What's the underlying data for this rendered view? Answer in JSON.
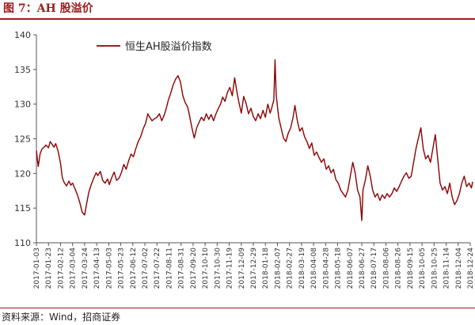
{
  "figure_title": "图 7：AH 股溢价",
  "source": "资料来源：Wind，招商证券",
  "colors": {
    "accent": "#9b1b1b",
    "series": "#8b0000"
  },
  "chart_data": {
    "type": "line",
    "title": "",
    "xlabel": "",
    "ylabel": "",
    "ylim": [
      110,
      140
    ],
    "yticks": [
      110,
      115,
      120,
      125,
      130,
      135,
      140
    ],
    "grid": false,
    "legend": "top-left",
    "xticks": [
      "2017-01-03",
      "2017-01-23",
      "2017-02-12",
      "2017-03-04",
      "2017-03-24",
      "2017-04-13",
      "2017-05-03",
      "2017-05-23",
      "2017-06-12",
      "2017-07-02",
      "2017-07-22",
      "2017-08-11",
      "2017-08-31",
      "2017-09-20",
      "2017-10-10",
      "2017-10-30",
      "2017-11-19",
      "2017-12-09",
      "2017-12-29",
      "2018-01-18",
      "2018-02-07",
      "2018-02-27",
      "2018-03-19",
      "2018-04-08",
      "2018-04-28",
      "2018-05-18",
      "2018-06-07",
      "2018-06-27",
      "2018-07-17",
      "2018-08-06",
      "2018-08-26",
      "2018-09-15",
      "2018-10-05",
      "2018-10-25",
      "2018-11-14",
      "2018-12-04",
      "2018-12-24"
    ],
    "series": [
      {
        "name": "恒生AH股溢价指数",
        "points": [
          [
            "2017-01-03",
            123.3
          ],
          [
            "2017-01-06",
            121.0
          ],
          [
            "2017-01-09",
            122.8
          ],
          [
            "2017-01-12",
            123.5
          ],
          [
            "2017-01-16",
            123.8
          ],
          [
            "2017-01-19",
            124.1
          ],
          [
            "2017-01-23",
            123.7
          ],
          [
            "2017-01-26",
            124.6
          ],
          [
            "2017-02-01",
            123.8
          ],
          [
            "2017-02-04",
            124.3
          ],
          [
            "2017-02-08",
            123.2
          ],
          [
            "2017-02-12",
            121.5
          ],
          [
            "2017-02-15",
            119.4
          ],
          [
            "2017-02-18",
            118.7
          ],
          [
            "2017-02-22",
            118.2
          ],
          [
            "2017-02-26",
            118.9
          ],
          [
            "2017-03-01",
            118.3
          ],
          [
            "2017-03-04",
            118.6
          ],
          [
            "2017-03-08",
            117.8
          ],
          [
            "2017-03-12",
            116.9
          ],
          [
            "2017-03-16",
            115.8
          ],
          [
            "2017-03-20",
            114.4
          ],
          [
            "2017-03-24",
            114.0
          ],
          [
            "2017-03-27",
            115.5
          ],
          [
            "2017-03-31",
            117.3
          ],
          [
            "2017-04-04",
            118.4
          ],
          [
            "2017-04-08",
            119.3
          ],
          [
            "2017-04-12",
            120.1
          ],
          [
            "2017-04-15",
            119.7
          ],
          [
            "2017-04-19",
            120.3
          ],
          [
            "2017-04-23",
            119.0
          ],
          [
            "2017-04-27",
            118.6
          ],
          [
            "2017-05-01",
            119.2
          ],
          [
            "2017-05-04",
            118.4
          ],
          [
            "2017-05-08",
            119.4
          ],
          [
            "2017-05-12",
            120.2
          ],
          [
            "2017-05-16",
            119.0
          ],
          [
            "2017-05-20",
            119.3
          ],
          [
            "2017-05-24",
            120.1
          ],
          [
            "2017-05-28",
            121.3
          ],
          [
            "2017-06-01",
            120.6
          ],
          [
            "2017-06-05",
            121.8
          ],
          [
            "2017-06-09",
            122.8
          ],
          [
            "2017-06-13",
            122.4
          ],
          [
            "2017-06-17",
            123.6
          ],
          [
            "2017-06-21",
            124.6
          ],
          [
            "2017-06-25",
            125.3
          ],
          [
            "2017-06-29",
            126.4
          ],
          [
            "2017-07-03",
            127.2
          ],
          [
            "2017-07-07",
            128.6
          ],
          [
            "2017-07-10",
            128.1
          ],
          [
            "2017-07-14",
            127.6
          ],
          [
            "2017-07-18",
            127.9
          ],
          [
            "2017-07-22",
            128.1
          ],
          [
            "2017-07-26",
            128.6
          ],
          [
            "2017-07-30",
            127.6
          ],
          [
            "2017-08-03",
            128.4
          ],
          [
            "2017-08-06",
            129.2
          ],
          [
            "2017-08-10",
            130.6
          ],
          [
            "2017-08-14",
            131.6
          ],
          [
            "2017-08-18",
            132.8
          ],
          [
            "2017-08-22",
            133.6
          ],
          [
            "2017-08-26",
            134.1
          ],
          [
            "2017-08-30",
            133.2
          ],
          [
            "2017-09-03",
            131.2
          ],
          [
            "2017-09-07",
            130.2
          ],
          [
            "2017-09-11",
            129.6
          ],
          [
            "2017-09-14",
            128.4
          ],
          [
            "2017-09-18",
            126.6
          ],
          [
            "2017-09-22",
            125.1
          ],
          [
            "2017-09-26",
            126.6
          ],
          [
            "2017-09-30",
            127.4
          ],
          [
            "2017-10-04",
            128.1
          ],
          [
            "2017-10-08",
            127.6
          ],
          [
            "2017-10-12",
            128.6
          ],
          [
            "2017-10-16",
            127.8
          ],
          [
            "2017-10-20",
            128.5
          ],
          [
            "2017-10-24",
            127.6
          ],
          [
            "2017-10-28",
            128.6
          ],
          [
            "2017-11-01",
            129.4
          ],
          [
            "2017-11-05",
            130.1
          ],
          [
            "2017-11-08",
            131.0
          ],
          [
            "2017-11-12",
            130.4
          ],
          [
            "2017-11-16",
            131.7
          ],
          [
            "2017-11-20",
            132.4
          ],
          [
            "2017-11-24",
            131.2
          ],
          [
            "2017-11-28",
            133.8
          ],
          [
            "2017-12-02",
            131.6
          ],
          [
            "2017-12-05",
            130.3
          ],
          [
            "2017-12-09",
            128.7
          ],
          [
            "2017-12-13",
            131.1
          ],
          [
            "2017-12-17",
            130.1
          ],
          [
            "2017-12-21",
            128.6
          ],
          [
            "2017-12-25",
            129.4
          ],
          [
            "2017-12-29",
            128.2
          ],
          [
            "2018-01-02",
            127.6
          ],
          [
            "2018-01-06",
            128.6
          ],
          [
            "2018-01-10",
            127.9
          ],
          [
            "2018-01-14",
            129.1
          ],
          [
            "2018-01-18",
            128.1
          ],
          [
            "2018-01-22",
            130.0
          ],
          [
            "2018-01-26",
            128.7
          ],
          [
            "2018-01-29",
            129.6
          ],
          [
            "2018-02-01",
            130.6
          ],
          [
            "2018-02-03",
            136.4
          ],
          [
            "2018-02-05",
            131.3
          ],
          [
            "2018-02-09",
            128.1
          ],
          [
            "2018-02-13",
            126.6
          ],
          [
            "2018-02-17",
            125.1
          ],
          [
            "2018-02-21",
            124.6
          ],
          [
            "2018-02-25",
            125.8
          ],
          [
            "2018-03-01",
            126.6
          ],
          [
            "2018-03-05",
            128.1
          ],
          [
            "2018-03-08",
            129.8
          ],
          [
            "2018-03-12",
            127.6
          ],
          [
            "2018-03-16",
            126.1
          ],
          [
            "2018-03-20",
            126.6
          ],
          [
            "2018-03-24",
            125.3
          ],
          [
            "2018-03-28",
            124.6
          ],
          [
            "2018-04-01",
            123.6
          ],
          [
            "2018-04-05",
            124.4
          ],
          [
            "2018-04-09",
            122.6
          ],
          [
            "2018-04-13",
            123.1
          ],
          [
            "2018-04-17",
            122.3
          ],
          [
            "2018-04-21",
            121.6
          ],
          [
            "2018-04-25",
            122.1
          ],
          [
            "2018-04-29",
            120.6
          ],
          [
            "2018-05-03",
            121.1
          ],
          [
            "2018-05-07",
            120.1
          ],
          [
            "2018-05-11",
            120.6
          ],
          [
            "2018-05-15",
            119.1
          ],
          [
            "2018-05-19",
            118.6
          ],
          [
            "2018-05-23",
            117.6
          ],
          [
            "2018-05-27",
            117.1
          ],
          [
            "2018-05-31",
            116.6
          ],
          [
            "2018-06-04",
            117.6
          ],
          [
            "2018-06-08",
            119.6
          ],
          [
            "2018-06-12",
            121.6
          ],
          [
            "2018-06-16",
            120.1
          ],
          [
            "2018-06-20",
            117.6
          ],
          [
            "2018-06-24",
            116.6
          ],
          [
            "2018-06-27",
            113.2
          ],
          [
            "2018-06-29",
            117.6
          ],
          [
            "2018-07-03",
            119.1
          ],
          [
            "2018-07-07",
            121.1
          ],
          [
            "2018-07-11",
            119.6
          ],
          [
            "2018-07-15",
            117.6
          ],
          [
            "2018-07-19",
            116.6
          ],
          [
            "2018-07-23",
            117.1
          ],
          [
            "2018-07-27",
            116.1
          ],
          [
            "2018-07-31",
            116.9
          ],
          [
            "2018-08-04",
            116.4
          ],
          [
            "2018-08-08",
            117.1
          ],
          [
            "2018-08-12",
            116.6
          ],
          [
            "2018-08-16",
            117.1
          ],
          [
            "2018-08-20",
            117.9
          ],
          [
            "2018-08-24",
            117.4
          ],
          [
            "2018-08-28",
            118.1
          ],
          [
            "2018-09-01",
            118.9
          ],
          [
            "2018-09-05",
            119.6
          ],
          [
            "2018-09-09",
            120.1
          ],
          [
            "2018-09-13",
            119.3
          ],
          [
            "2018-09-17",
            119.6
          ],
          [
            "2018-09-21",
            121.6
          ],
          [
            "2018-09-25",
            123.6
          ],
          [
            "2018-09-29",
            125.1
          ],
          [
            "2018-10-03",
            126.6
          ],
          [
            "2018-10-07",
            123.6
          ],
          [
            "2018-10-11",
            122.1
          ],
          [
            "2018-10-15",
            122.6
          ],
          [
            "2018-10-19",
            121.6
          ],
          [
            "2018-10-23",
            123.6
          ],
          [
            "2018-10-27",
            125.6
          ],
          [
            "2018-10-31",
            122.1
          ],
          [
            "2018-11-04",
            118.6
          ],
          [
            "2018-11-08",
            117.6
          ],
          [
            "2018-11-12",
            118.1
          ],
          [
            "2018-11-16",
            117.1
          ],
          [
            "2018-11-20",
            118.6
          ],
          [
            "2018-11-24",
            116.6
          ],
          [
            "2018-11-28",
            115.5
          ],
          [
            "2018-12-02",
            116.1
          ],
          [
            "2018-12-06",
            117.1
          ],
          [
            "2018-12-10",
            118.6
          ],
          [
            "2018-12-14",
            119.6
          ],
          [
            "2018-12-18",
            118.1
          ],
          [
            "2018-12-22",
            118.6
          ],
          [
            "2018-12-26",
            117.9
          ],
          [
            "2018-12-28",
            118.8
          ]
        ]
      }
    ]
  }
}
